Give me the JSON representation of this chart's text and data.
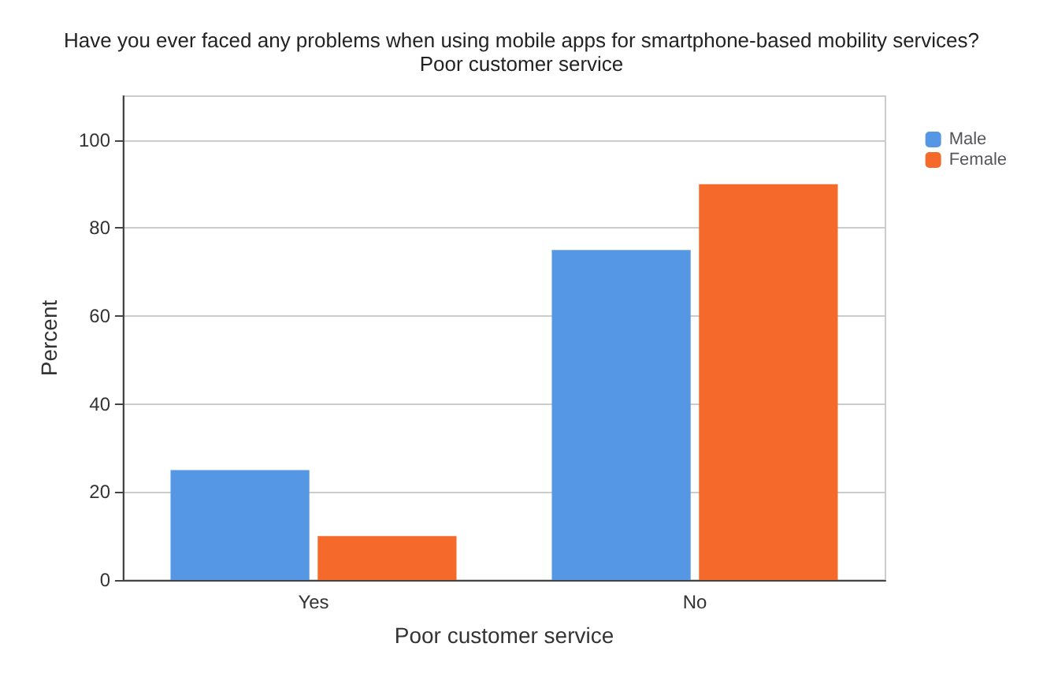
{
  "chart_data": {
    "type": "bar",
    "title": "Have you ever faced any problems when using mobile apps for smartphone-based mobility services?",
    "subtitle": "Poor customer service",
    "xlabel": "Poor customer service",
    "ylabel": "Percent",
    "categories": [
      "Yes",
      "No"
    ],
    "series": [
      {
        "name": "Male",
        "color": "#5597e4",
        "values": [
          25,
          75
        ]
      },
      {
        "name": "Female",
        "color": "#f5692b",
        "values": [
          10,
          90
        ]
      }
    ],
    "ylim": [
      0,
      110
    ],
    "yticks": [
      0,
      20,
      40,
      60,
      80,
      100
    ],
    "grid": "y",
    "legend": "top right"
  }
}
